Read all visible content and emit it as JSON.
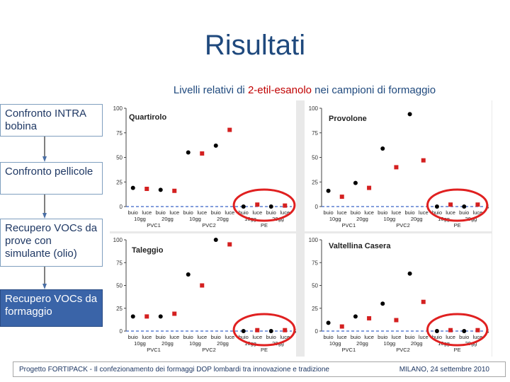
{
  "slide": {
    "title": "Risultati",
    "subtitle_pre": "Livelli relativi di ",
    "subtitle_hl": "2-etil-esanolo",
    "subtitle_post": " nei campioni di formaggio"
  },
  "steps": [
    {
      "label": "Confronto INTRA bobina",
      "active": false
    },
    {
      "label": "Confronto pellicole",
      "active": false
    },
    {
      "label": "Recupero VOCs da prove con simulante (olio)",
      "active": false
    },
    {
      "label": "Recupero VOCs da formaggio",
      "active": true
    }
  ],
  "footer": {
    "left": "Progetto FORTIPACK - Il confezionamento dei formaggi DOP lombardi tra innovazione e tradizione",
    "right": "MILANO, 24 settembre 2010"
  },
  "colors": {
    "buio": "#000000",
    "luce": "#d42020",
    "highlight": "#e02020",
    "title": "#1f497d"
  },
  "chart_data": [
    {
      "type": "scatter",
      "title": "Quartirolo",
      "ylim": [
        0,
        100
      ],
      "yticks": [
        0,
        25,
        50,
        75,
        100
      ],
      "categories": [
        "buio",
        "luce",
        "buio",
        "luce",
        "buio",
        "luce",
        "buio",
        "luce",
        "buio",
        "luce",
        "buio",
        "luce"
      ],
      "days": [
        "10gg",
        "20gg",
        "10gg",
        "20gg",
        "10gg",
        "20gg"
      ],
      "films": [
        "PVC1",
        "PVC2",
        "PE"
      ],
      "series": [
        {
          "name": "buio",
          "values": [
            19,
            null,
            17,
            null,
            55,
            null,
            62,
            null,
            0,
            null,
            0,
            null
          ]
        },
        {
          "name": "luce",
          "values": [
            null,
            18,
            null,
            16,
            null,
            54,
            null,
            78,
            null,
            2,
            null,
            1
          ]
        }
      ],
      "highlight_group": "PE"
    },
    {
      "type": "scatter",
      "title": "Provolone",
      "ylim": [
        0,
        100
      ],
      "yticks": [
        0,
        25,
        50,
        75,
        100
      ],
      "categories": [
        "buio",
        "luce",
        "buio",
        "luce",
        "buio",
        "luce",
        "buio",
        "luce",
        "buio",
        "luce",
        "buio",
        "luce"
      ],
      "days": [
        "10gg",
        "20gg",
        "10gg",
        "20gg",
        "10gg",
        "20gg"
      ],
      "films": [
        "PVC1",
        "PVC2",
        "PE"
      ],
      "series": [
        {
          "name": "buio",
          "values": [
            16,
            null,
            24,
            null,
            59,
            null,
            94,
            null,
            0,
            null,
            0,
            null
          ]
        },
        {
          "name": "luce",
          "values": [
            null,
            10,
            null,
            19,
            null,
            40,
            null,
            47,
            null,
            2,
            null,
            2
          ]
        }
      ],
      "highlight_group": "PE",
      "extra_tick": "4"
    },
    {
      "type": "scatter",
      "title": "Taleggio",
      "ylim": [
        0,
        100
      ],
      "yticks": [
        0,
        25,
        50,
        75,
        100
      ],
      "categories": [
        "buio",
        "luce",
        "buio",
        "luce",
        "buio",
        "luce",
        "buio",
        "luce",
        "buio",
        "luce",
        "buio",
        "luce"
      ],
      "days": [
        "10gg",
        "20gg",
        "10gg",
        "20gg",
        "10gg",
        "20gg"
      ],
      "films": [
        "PVC1",
        "PVC2",
        "PE"
      ],
      "series": [
        {
          "name": "buio",
          "values": [
            16,
            null,
            16,
            null,
            62,
            null,
            100,
            null,
            0,
            null,
            0,
            null
          ]
        },
        {
          "name": "luce",
          "values": [
            null,
            16,
            null,
            19,
            null,
            50,
            null,
            95,
            null,
            1,
            null,
            1
          ]
        }
      ],
      "highlight_group": "PE",
      "extra_tick": "5"
    },
    {
      "type": "scatter",
      "title": "Valtellina Casera",
      "ylim": [
        0,
        100
      ],
      "yticks": [
        0,
        25,
        50,
        75,
        100
      ],
      "categories": [
        "buio",
        "luce",
        "buio",
        "luce",
        "buio",
        "luce",
        "buio",
        "luce",
        "buio",
        "luce",
        "buio",
        "luce"
      ],
      "days": [
        "10gg",
        "20gg",
        "10gg",
        "20gg",
        "10gg",
        "20gg"
      ],
      "films": [
        "PVC1",
        "PVC2",
        "PE"
      ],
      "series": [
        {
          "name": "buio",
          "values": [
            9,
            null,
            16,
            null,
            30,
            null,
            63,
            null,
            0,
            null,
            0,
            null
          ]
        },
        {
          "name": "luce",
          "values": [
            null,
            5,
            null,
            14,
            null,
            12,
            null,
            32,
            null,
            1,
            null,
            1
          ]
        }
      ],
      "highlight_group": "PE",
      "extra_tick": "4"
    }
  ]
}
